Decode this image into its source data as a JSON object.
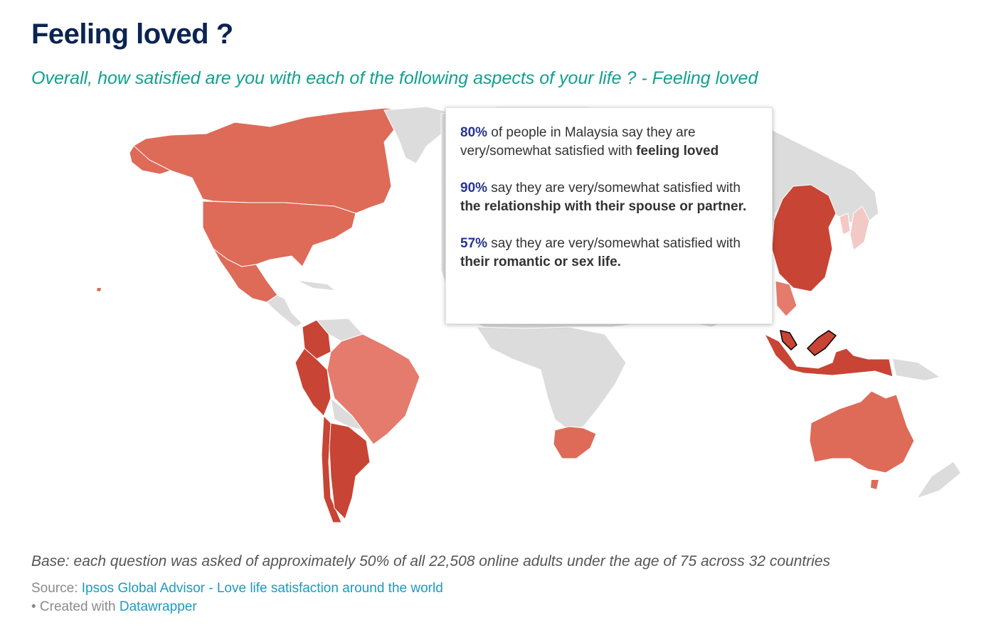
{
  "title": "Feeling loved ?",
  "subtitle": "Overall, how satisfied are you with each of the following aspects of your life ? - Feeling loved",
  "colors": {
    "no_data": "#dcdcdc",
    "light": "#e47b6c",
    "medium": "#dd6b58",
    "dark": "#c84434",
    "pale": "#f3c9c5",
    "highlight_outline": "#000000"
  },
  "tooltip": {
    "country": "Malaysia",
    "p1_pct": "80%",
    "p1_text": " of people in Malaysia say they are very/somewhat satisfied with ",
    "p1_bold": "feeling loved",
    "p2_pct": "90%",
    "p2_text": " say they are very/somewhat satisfied with ",
    "p2_bold": "the relationship with their spouse or partner.",
    "p3_pct": "57%",
    "p3_text": " say they are very/somewhat satisfied with ",
    "p3_bold": "their romantic or sex life."
  },
  "base": "Base: each question was asked of approximately 50% of all 22,508 online adults under the age of 75 across 32 countries",
  "source_label": "Source: ",
  "source_link": "Ipsos Global Advisor - Love life satisfaction around the world",
  "created_prefix": "• Created with ",
  "created_link": "Datawrapper"
}
